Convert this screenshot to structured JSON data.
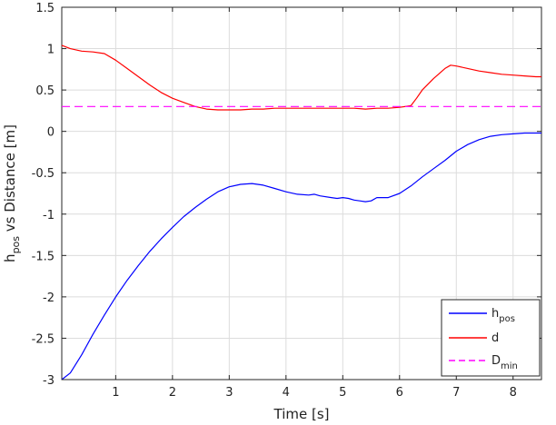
{
  "chart_data": {
    "type": "line",
    "title": "",
    "xlabel": "Time [s]",
    "ylabel_main": "h",
    "ylabel_sub": "pos",
    "ylabel_rest": " vs Distance [m]",
    "xlim": [
      0.05,
      8.5
    ],
    "ylim": [
      -3,
      1.5
    ],
    "xticks": [
      1,
      2,
      3,
      4,
      5,
      6,
      7,
      8
    ],
    "yticks": [
      -3,
      -2.5,
      -2,
      -1.5,
      -1,
      -0.5,
      0,
      0.5,
      1,
      1.5
    ],
    "xtick_labels": [
      "1",
      "2",
      "3",
      "4",
      "5",
      "6",
      "7",
      "8"
    ],
    "ytick_labels": [
      "-3",
      "-2.5",
      "-2",
      "-1.5",
      "-1",
      "-0.5",
      "0",
      "0.5",
      "1",
      "1.5"
    ],
    "grid": true,
    "legend_position": "bottom-right",
    "series": [
      {
        "name_main": "h",
        "name_sub": "pos",
        "color": "#0000ff",
        "style": "solid",
        "x": [
          0.05,
          0.2,
          0.4,
          0.6,
          0.8,
          1.0,
          1.2,
          1.4,
          1.6,
          1.8,
          2.0,
          2.2,
          2.4,
          2.6,
          2.8,
          3.0,
          3.2,
          3.4,
          3.6,
          3.8,
          4.0,
          4.2,
          4.4,
          4.5,
          4.6,
          4.8,
          4.9,
          5.0,
          5.1,
          5.2,
          5.3,
          5.4,
          5.5,
          5.6,
          5.8,
          6.0,
          6.2,
          6.4,
          6.6,
          6.8,
          7.0,
          7.2,
          7.4,
          7.6,
          7.8,
          8.0,
          8.2,
          8.4,
          8.5
        ],
        "y": [
          -3.0,
          -2.92,
          -2.7,
          -2.45,
          -2.22,
          -2.0,
          -1.8,
          -1.62,
          -1.45,
          -1.3,
          -1.16,
          -1.03,
          -0.92,
          -0.82,
          -0.73,
          -0.67,
          -0.64,
          -0.63,
          -0.65,
          -0.69,
          -0.73,
          -0.76,
          -0.77,
          -0.76,
          -0.78,
          -0.8,
          -0.81,
          -0.8,
          -0.81,
          -0.83,
          -0.84,
          -0.85,
          -0.84,
          -0.8,
          -0.8,
          -0.75,
          -0.66,
          -0.55,
          -0.45,
          -0.35,
          -0.24,
          -0.16,
          -0.1,
          -0.06,
          -0.04,
          -0.03,
          -0.02,
          -0.02,
          -0.02
        ]
      },
      {
        "name_main": "d",
        "name_sub": "",
        "color": "#ff0000",
        "style": "solid",
        "x": [
          0.05,
          0.2,
          0.4,
          0.6,
          0.8,
          1.0,
          1.2,
          1.4,
          1.6,
          1.8,
          2.0,
          2.2,
          2.4,
          2.6,
          2.8,
          3.0,
          3.2,
          3.4,
          3.6,
          3.8,
          4.0,
          4.2,
          4.4,
          4.6,
          4.8,
          5.0,
          5.2,
          5.4,
          5.6,
          5.8,
          6.0,
          6.2,
          6.3,
          6.4,
          6.6,
          6.8,
          6.9,
          7.0,
          7.2,
          7.4,
          7.6,
          7.8,
          8.0,
          8.2,
          8.4,
          8.5
        ],
        "y": [
          1.04,
          1.0,
          0.97,
          0.96,
          0.94,
          0.86,
          0.76,
          0.66,
          0.56,
          0.47,
          0.4,
          0.35,
          0.3,
          0.27,
          0.26,
          0.26,
          0.26,
          0.27,
          0.27,
          0.28,
          0.28,
          0.28,
          0.28,
          0.28,
          0.28,
          0.28,
          0.28,
          0.27,
          0.28,
          0.28,
          0.29,
          0.31,
          0.4,
          0.5,
          0.64,
          0.76,
          0.8,
          0.79,
          0.76,
          0.73,
          0.71,
          0.69,
          0.68,
          0.67,
          0.66,
          0.66
        ]
      },
      {
        "name_main": "D",
        "name_sub": "min",
        "color": "#ff00ff",
        "style": "dashed",
        "x": [
          0.05,
          8.5
        ],
        "y": [
          0.3,
          0.3
        ]
      }
    ]
  }
}
